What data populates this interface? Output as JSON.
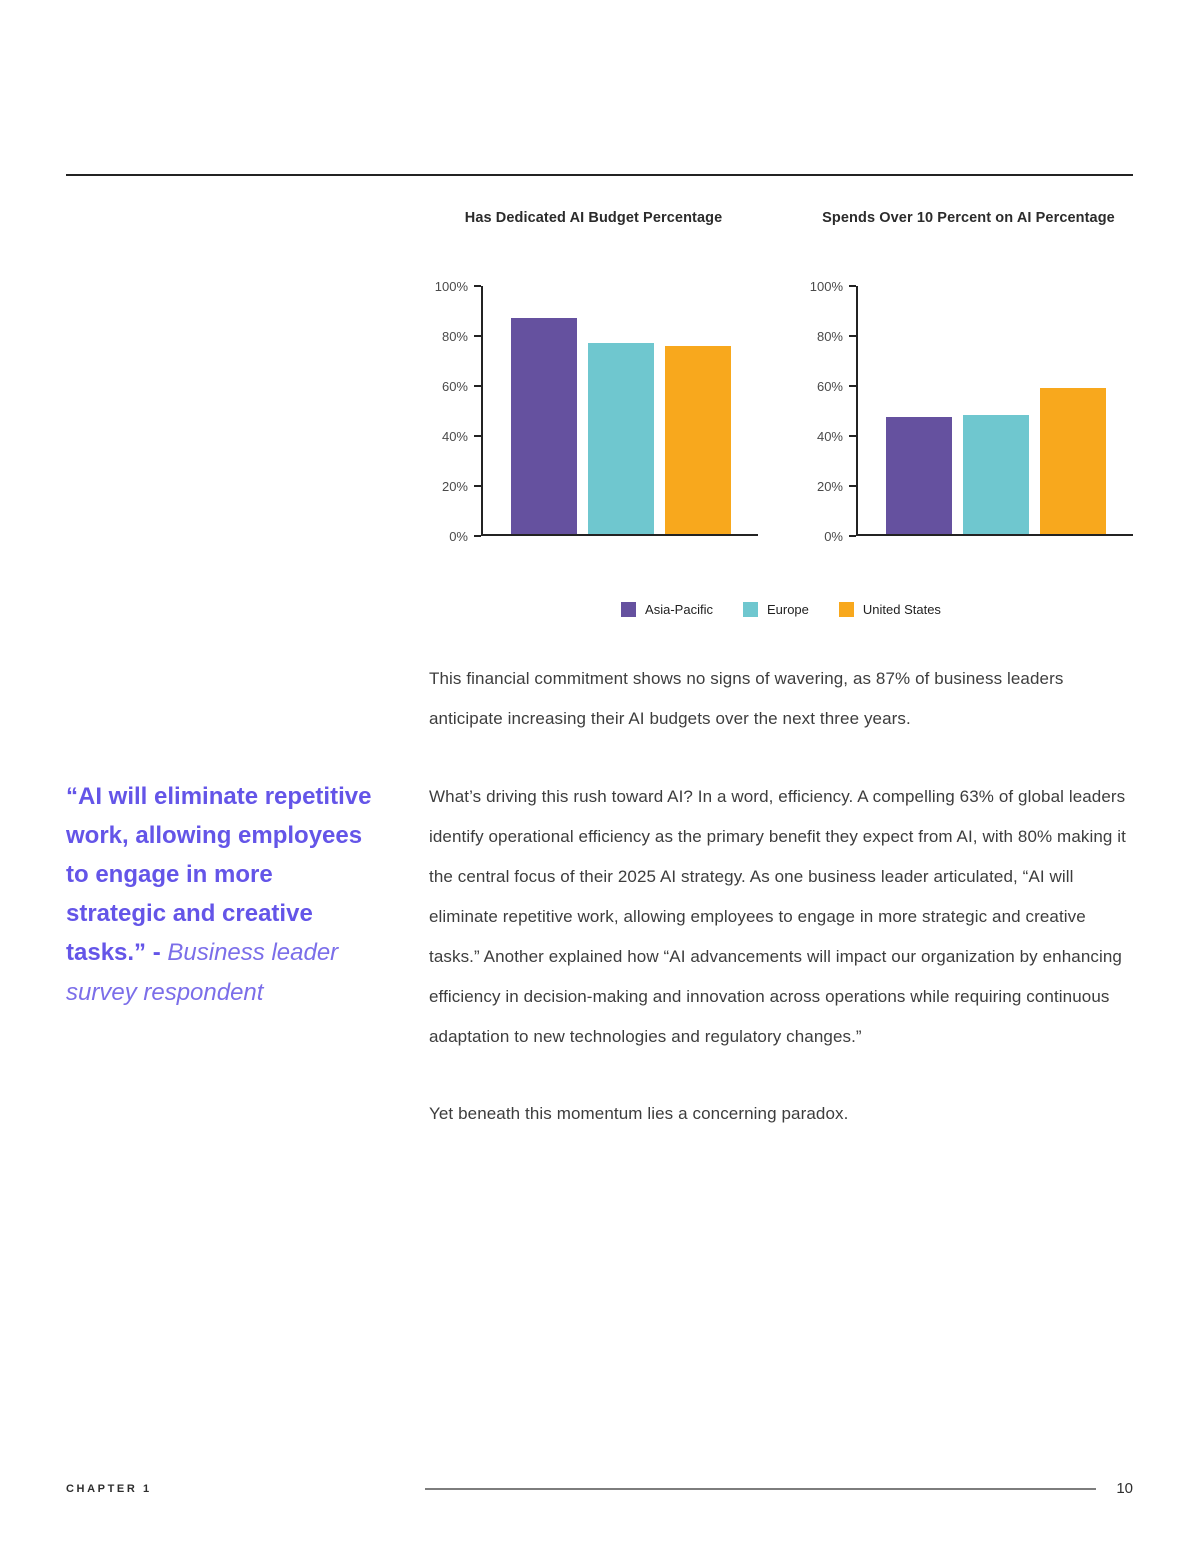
{
  "chart_data": [
    {
      "type": "bar",
      "title": "Has Dedicated AI Budget Percentage",
      "categories": [
        "Asia-Pacific",
        "Europe",
        "United States"
      ],
      "values": [
        87,
        77,
        76
      ],
      "ylabel": "",
      "xlabel": "",
      "ylim": [
        0,
        100
      ],
      "yticks": [
        "100%",
        "80%",
        "60%",
        "40%",
        "20%",
        "0%"
      ],
      "grid": false,
      "legend_position": "bottom-center"
    },
    {
      "type": "bar",
      "title": "Spends Over 10 Percent on AI Percentage",
      "categories": [
        "Asia-Pacific",
        "Europe",
        "United States"
      ],
      "values": [
        47,
        48,
        59
      ],
      "ylabel": "",
      "xlabel": "",
      "ylim": [
        0,
        100
      ],
      "yticks": [
        "100%",
        "80%",
        "60%",
        "40%",
        "20%",
        "0%"
      ],
      "grid": false,
      "legend_position": "bottom-center"
    }
  ],
  "legend": [
    {
      "label": "Asia-Pacific",
      "color": "#65519f"
    },
    {
      "label": "Europe",
      "color": "#6fc7cf"
    },
    {
      "label": "United States",
      "color": "#f8a81d"
    }
  ],
  "quote": {
    "text": "“AI will eliminate repetitive work, allowing employees to engage in more strategic and creative tasks.” -",
    "attribution": "Business leader survey respondent",
    "color": "#6455e8",
    "attribution_color": "#7b6ee9"
  },
  "paragraphs": {
    "p1": "This financial commitment shows no signs of wavering, as 87% of business leaders anticipate increasing their AI budgets over the next three years.",
    "p2": "What’s driving this rush toward AI? In a word, efficiency. A compelling 63% of global leaders identify operational efficiency as the primary benefit they expect from AI, with 80% making it the central focus of their 2025 AI strategy. As one business leader articulated, “AI will eliminate repetitive work, allowing employees to engage in more strategic and creative tasks.” Another explained how “AI advancements will impact our organization by enhancing efficiency in decision-making and innovation across operations while requiring continuous adaptation to new technologies and regulatory changes.”",
    "p3": "Yet beneath this momentum lies a concerning paradox."
  },
  "footer": {
    "chapter": "CHAPTER 1",
    "page_number": "10"
  }
}
